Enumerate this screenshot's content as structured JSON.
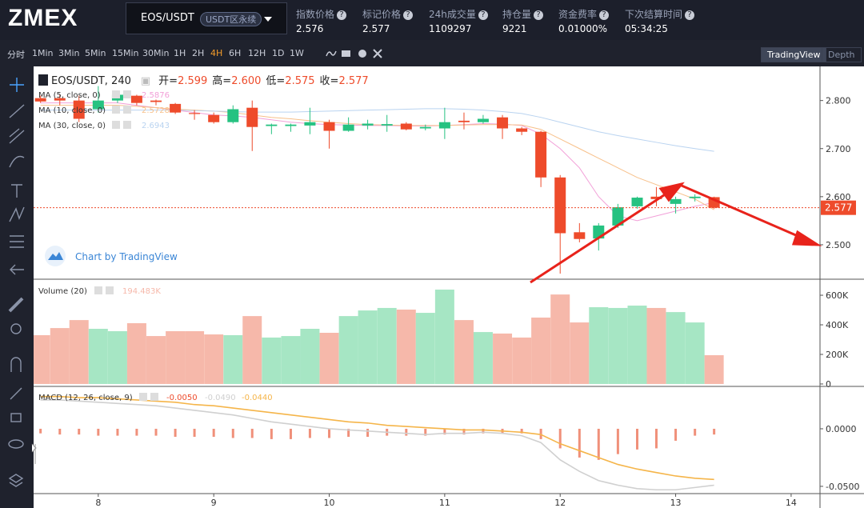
{
  "header": {
    "logo": "ZMEX",
    "symbol": "EOS/USDT",
    "contract_tag": "USDT区永续",
    "stats": [
      {
        "label": "指数价格",
        "value": "2.576"
      },
      {
        "label": "标记价格",
        "value": "2.577"
      },
      {
        "label": "24h成交量",
        "value": "1109297"
      },
      {
        "label": "持仓量",
        "value": "9221"
      },
      {
        "label": "资金费率",
        "value": "0.01000%"
      },
      {
        "label": "下次结算时间",
        "value": "05:34:25"
      }
    ]
  },
  "toolbar": {
    "intervals": [
      "分时",
      "1Min",
      "3Min",
      "5Min",
      "15Min",
      "30Min",
      "1H",
      "2H",
      "4H",
      "6H",
      "12H",
      "1D",
      "1W"
    ],
    "active_interval": 8,
    "views": [
      "TradingView",
      "Depth"
    ],
    "active_view": 0
  },
  "watermark": "Chart by TradingView",
  "chart_data": [
    {
      "type": "candlestick",
      "title": "EOS/USDT, 240",
      "ohlc_legend": [
        {
          "label": "开=",
          "value": "2.599"
        },
        {
          "label": "高=",
          "value": "2.600"
        },
        {
          "label": "低=",
          "value": "2.575"
        },
        {
          "label": "收=",
          "value": "2.577"
        }
      ],
      "x": [
        7.5,
        7.667,
        7.833,
        8,
        8.167,
        8.333,
        8.5,
        8.667,
        8.833,
        9,
        9.167,
        9.333,
        9.5,
        9.667,
        9.833,
        10,
        10.167,
        10.333,
        10.5,
        10.667,
        10.833,
        11,
        11.167,
        11.333,
        11.5,
        11.667,
        11.833,
        12,
        12.167,
        12.333,
        12.5,
        12.667,
        12.833,
        13,
        13.167,
        13.333
      ],
      "open": [
        2.805,
        2.805,
        2.8,
        2.782,
        2.8,
        2.81,
        2.8,
        2.793,
        2.774,
        2.77,
        2.755,
        2.785,
        2.747,
        2.747,
        2.748,
        2.755,
        2.737,
        2.748,
        2.748,
        2.752,
        2.742,
        2.742,
        2.758,
        2.755,
        2.765,
        2.742,
        2.735,
        2.64,
        2.526,
        2.513,
        2.54,
        2.58,
        2.6,
        2.585,
        2.597,
        2.599
      ],
      "high": [
        2.81,
        2.812,
        2.81,
        2.83,
        2.82,
        2.812,
        2.802,
        2.795,
        2.78,
        2.775,
        2.79,
        2.8,
        2.752,
        2.752,
        2.785,
        2.76,
        2.765,
        2.76,
        2.77,
        2.755,
        2.75,
        2.785,
        2.775,
        2.77,
        2.77,
        2.745,
        2.737,
        2.645,
        2.545,
        2.545,
        2.585,
        2.6,
        2.62,
        2.6,
        2.605,
        2.6
      ],
      "low": [
        2.795,
        2.79,
        2.755,
        2.775,
        2.795,
        2.79,
        2.79,
        2.772,
        2.76,
        2.752,
        2.752,
        2.695,
        2.73,
        2.735,
        2.73,
        2.7,
        2.735,
        2.74,
        2.735,
        2.738,
        2.738,
        2.72,
        2.74,
        2.752,
        2.72,
        2.728,
        2.62,
        2.44,
        2.505,
        2.488,
        2.535,
        2.575,
        2.58,
        2.565,
        2.59,
        2.575
      ],
      "close": [
        2.798,
        2.8,
        2.762,
        2.8,
        2.812,
        2.795,
        2.797,
        2.775,
        2.772,
        2.755,
        2.782,
        2.745,
        2.75,
        2.75,
        2.755,
        2.737,
        2.75,
        2.752,
        2.751,
        2.74,
        2.745,
        2.755,
        2.755,
        2.762,
        2.742,
        2.735,
        2.64,
        2.524,
        2.512,
        2.54,
        2.578,
        2.598,
        2.595,
        2.595,
        2.6,
        2.577
      ],
      "up_color": "#26c281",
      "down_color": "#ee4b2b",
      "overlays": [
        {
          "name": "MA (5, close, 0)",
          "color": "#f2a0d8",
          "values": [
            2.795,
            2.795,
            2.795,
            2.795,
            2.795,
            2.79,
            2.785,
            2.78,
            2.775,
            2.77,
            2.768,
            2.765,
            2.76,
            2.755,
            2.752,
            2.75,
            2.749,
            2.748,
            2.748,
            2.747,
            2.747,
            2.748,
            2.75,
            2.752,
            2.751,
            2.748,
            2.73,
            2.7,
            2.66,
            2.6,
            2.56,
            2.55,
            2.56,
            2.57,
            2.58,
            2.5876
          ]
        },
        {
          "name": "MA (10, close, 0)",
          "color": "#f7c08a",
          "values": [
            2.79,
            2.79,
            2.79,
            2.79,
            2.79,
            2.788,
            2.785,
            2.782,
            2.78,
            2.778,
            2.775,
            2.77,
            2.765,
            2.762,
            2.758,
            2.755,
            2.752,
            2.75,
            2.749,
            2.748,
            2.748,
            2.748,
            2.749,
            2.75,
            2.75,
            2.749,
            2.74,
            2.72,
            2.7,
            2.68,
            2.66,
            2.64,
            2.625,
            2.61,
            2.595,
            2.5728
          ]
        },
        {
          "name": "MA (30, close, 0)",
          "color": "#b9d3f0",
          "values": [
            2.78,
            2.78,
            2.78,
            2.78,
            2.78,
            2.78,
            2.78,
            2.78,
            2.779,
            2.778,
            2.777,
            2.776,
            2.776,
            2.776,
            2.777,
            2.778,
            2.779,
            2.78,
            2.781,
            2.782,
            2.783,
            2.783,
            2.782,
            2.78,
            2.777,
            2.773,
            2.765,
            2.755,
            2.745,
            2.735,
            2.727,
            2.72,
            2.713,
            2.706,
            2.7,
            2.6943
          ]
        }
      ],
      "price_line": {
        "value": 2.577,
        "label": "2.577"
      },
      "ylim": [
        2.43,
        2.871
      ],
      "yticks": [
        {
          "value": 2.5,
          "label": "2.500"
        },
        {
          "value": 2.6,
          "label": "2.600"
        },
        {
          "value": 2.7,
          "label": "2.700"
        },
        {
          "value": 2.8,
          "label": "2.800"
        }
      ]
    },
    {
      "type": "bar",
      "title": "Volume (20)",
      "values": [
        330000,
        378000,
        432000,
        373000,
        357000,
        411000,
        324000,
        357000,
        357000,
        335000,
        330000,
        459000,
        314000,
        324000,
        373000,
        346000,
        459000,
        497000,
        514000,
        503000,
        481000,
        638000,
        432000,
        351000,
        341000,
        314000,
        449000,
        605000,
        416000,
        519000,
        514000,
        530000,
        514000,
        486000,
        416000,
        194483
      ],
      "value_labels": [
        null,
        null,
        null,
        null,
        null,
        null,
        null,
        null,
        null,
        null,
        null,
        null,
        null,
        null,
        null,
        null,
        null,
        null,
        null,
        null,
        null,
        null,
        null,
        null,
        null,
        null,
        null,
        null,
        null,
        null,
        null,
        null,
        null,
        null,
        null,
        "194.483K"
      ],
      "up_color": "#a6e6c4",
      "down_color": "#f6b8aa",
      "ylim": [
        -11000,
        703000
      ],
      "yticks": [
        {
          "value": 0,
          "label": "0"
        },
        {
          "value": 200000,
          "label": "200K"
        },
        {
          "value": 400000,
          "label": "400K"
        },
        {
          "value": 600000,
          "label": "600K"
        }
      ]
    },
    {
      "type": "macd",
      "title": "MACD (12, 26, close, 9)",
      "series": [
        {
          "name": "Histogram",
          "color": "#f0907a",
          "values": [
            -0.004,
            -0.005,
            -0.005,
            -0.006,
            -0.006,
            -0.006,
            -0.006,
            -0.007,
            -0.007,
            -0.007,
            -0.008,
            -0.008,
            -0.009,
            -0.009,
            -0.008,
            -0.008,
            -0.007,
            -0.007,
            -0.006,
            -0.006,
            -0.006,
            -0.005,
            -0.005,
            -0.004,
            -0.004,
            -0.004,
            -0.009,
            -0.017,
            -0.025,
            -0.027,
            -0.022,
            -0.018,
            -0.017,
            -0.0104,
            -0.006,
            -0.005
          ],
          "value_label": "-0.0050"
        },
        {
          "name": "MACD",
          "color": "#d0d0d0",
          "values": [
            0.025,
            0.025,
            0.024,
            0.023,
            0.022,
            0.021,
            0.02,
            0.018,
            0.016,
            0.014,
            0.012,
            0.009,
            0.006,
            0.004,
            0.002,
            0.0,
            -0.001,
            -0.002,
            -0.003,
            -0.004,
            -0.005,
            -0.004,
            -0.004,
            -0.003,
            -0.004,
            -0.006,
            -0.012,
            -0.027,
            -0.037,
            -0.045,
            -0.049,
            -0.052,
            -0.053,
            -0.053,
            -0.051,
            -0.049
          ],
          "value_label": "-0.0490"
        },
        {
          "name": "Signal",
          "color": "#f5b54a",
          "values": [
            0.028,
            0.028,
            0.027,
            0.027,
            0.026,
            0.025,
            0.024,
            0.023,
            0.021,
            0.02,
            0.018,
            0.016,
            0.014,
            0.012,
            0.01,
            0.008,
            0.006,
            0.005,
            0.003,
            0.002,
            0.001,
            0.0,
            -0.001,
            -0.001,
            -0.002,
            -0.003,
            -0.005,
            -0.013,
            -0.019,
            -0.025,
            -0.031,
            -0.035,
            -0.038,
            -0.041,
            -0.043,
            -0.044
          ],
          "value_label": "-0.0440"
        }
      ],
      "ylim": [
        -0.0563,
        0.0361
      ],
      "yticks": [
        {
          "value": -0.05,
          "label": "-0.0500"
        },
        {
          "value": 0,
          "label": "0.0000"
        }
      ],
      "xlim": [
        7.44,
        14.25
      ],
      "xticks": [
        8,
        9,
        10,
        11,
        12,
        13,
        14
      ]
    }
  ]
}
